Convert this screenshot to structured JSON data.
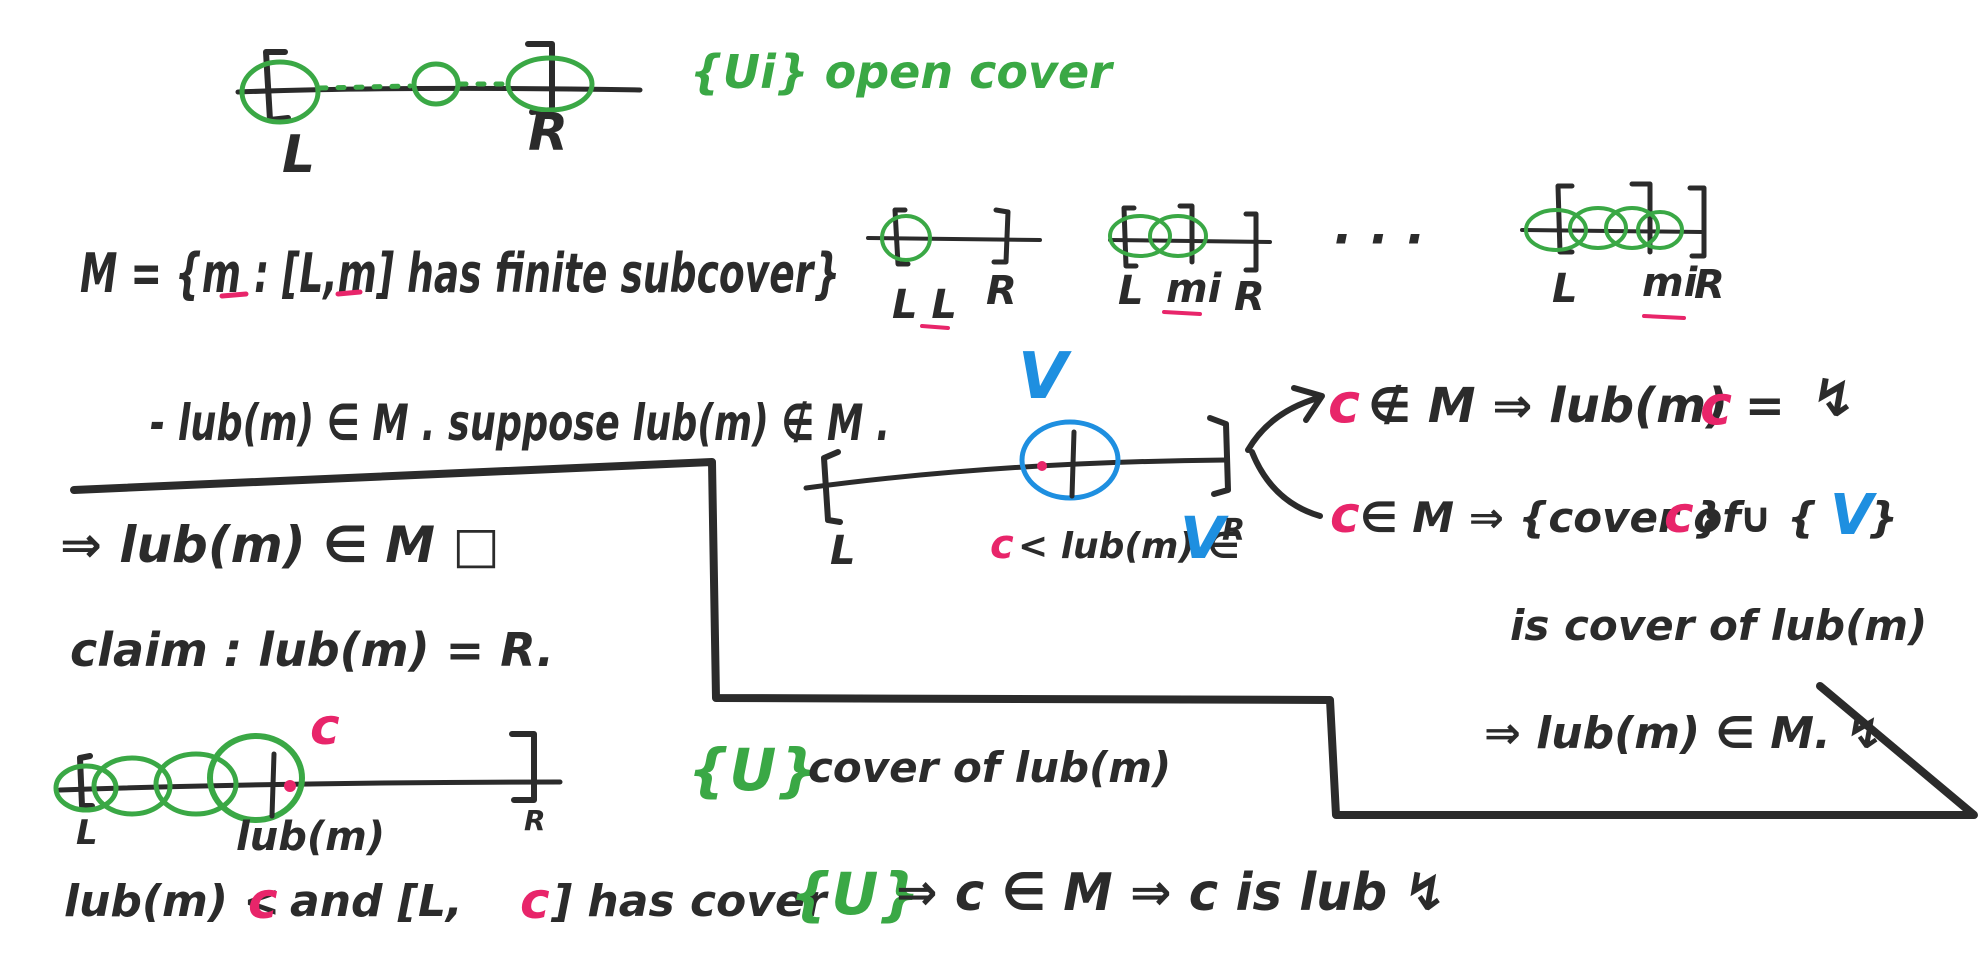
{
  "colors": {
    "ink": "#2b2b2b",
    "green": "#3aa845",
    "pink": "#e8256a",
    "blue": "#1e8fe0",
    "background": "#ffffff"
  },
  "top_diagram": {
    "label_left": "L",
    "label_right": "R",
    "dots": "· · ·",
    "cover_note": "{Ui} open cover"
  },
  "set_definition": {
    "text": "M = {m : [L,m] has finite subcover}",
    "thumb1_left": "L L",
    "thumb1_right": "R",
    "thumb2_left": "L",
    "thumb2_mid": "mi",
    "thumb2_right": "R",
    "ellipsis": "· · ·",
    "thumb3_left": "L",
    "thumb3_mid": "mi",
    "thumb3_right": "R"
  },
  "lub_question": {
    "text": "- lub(m) ∈ M . suppose lub(m) ∉ M ."
  },
  "middle_diagram": {
    "v_label": "V",
    "label_left": "L",
    "label_bottom_c": "c",
    "label_bottom_rest": "< lub(m) ∈",
    "label_bottom_v": "V",
    "label_right": "R"
  },
  "cases": {
    "case1_c": "c",
    "case1_rest": "∉ M ⇒ lub(m) =",
    "case1_c2": "c",
    "case1_contra": "↯",
    "case2_c": "c",
    "case2_rest": "∈ M ⇒ {cover of",
    "case2_c2": "c",
    "case2_union": "} ∪ {",
    "case2_v": "V",
    "case2_close": "}",
    "case2_line2": "is cover of lub(m)",
    "case2_line3": "⇒ lub(m) ∈ M. ↯"
  },
  "left_box": {
    "implies": "⇒ lub(m) ∈ M □",
    "claim": "claim : lub(m) = R."
  },
  "bottom_diagram": {
    "c_label": "c",
    "label_left": "L",
    "label_lub": "lub(m)",
    "label_right": "R",
    "cover_open": "{U}",
    "cover_text": "cover of lub(m)"
  },
  "bottom_line": {
    "part1": "lub(m) <",
    "c1": "c",
    "part2": "and [L,",
    "c2": "c",
    "part3": "] has cover",
    "u": "{U}",
    "part4": "⇒ c ∈ M ⇒ c is lub ↯"
  }
}
